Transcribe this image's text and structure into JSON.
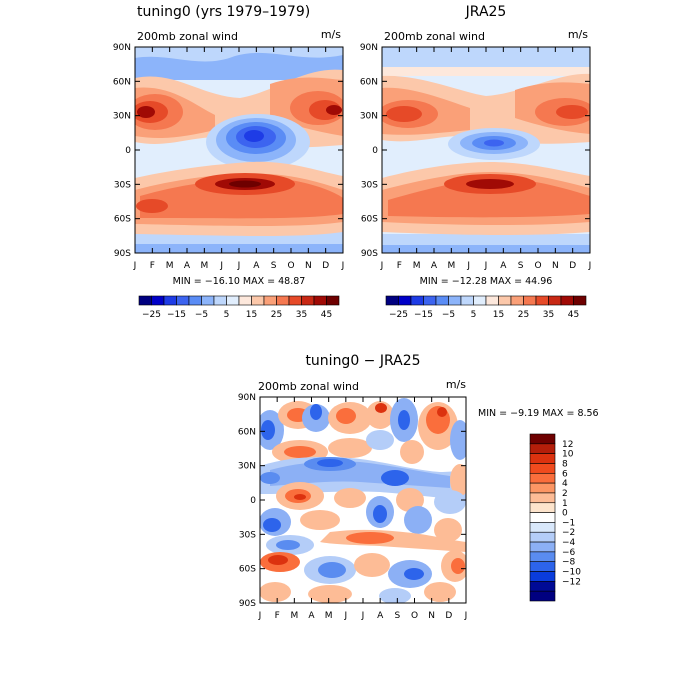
{
  "chart_data": [
    {
      "type": "heatmap",
      "title": "tuning0 (yrs 1979–1979)",
      "subtitle": "200mb zonal wind",
      "units": "m/s",
      "xlabels": [
        "J",
        "F",
        "M",
        "A",
        "M",
        "J",
        "J",
        "A",
        "S",
        "O",
        "N",
        "D",
        "J"
      ],
      "ylabels": [
        "90N",
        "60N",
        "30N",
        "0",
        "30S",
        "60S",
        "90S"
      ],
      "stats": "MIN = −16.10 MAX =   48.87",
      "colorbar": {
        "orientation": "horizontal",
        "levels": [
          -25,
          -20,
          -15,
          -10,
          -5,
          0,
          5,
          10,
          15,
          20,
          25,
          30,
          35,
          40,
          45
        ],
        "labels": [
          "−25",
          "−15",
          "−5",
          "5",
          "15",
          "25",
          "35",
          "45"
        ],
        "colors": [
          "#000080",
          "#0000c8",
          "#1e3ce6",
          "#3c64f0",
          "#5a8cf5",
          "#8cb4fa",
          "#bed7fc",
          "#e1eefd",
          "#fde8dc",
          "#fcc8aa",
          "#faa078",
          "#f57850",
          "#e64a28",
          "#c82814",
          "#a00a05",
          "#6e0000"
        ]
      },
      "zonal_profile": {
        "note": "",
        "values": []
      }
    },
    {
      "type": "heatmap",
      "title": "JRA25",
      "subtitle": "200mb zonal wind",
      "units": "m/s",
      "xlabels": [
        "J",
        "F",
        "M",
        "A",
        "M",
        "J",
        "J",
        "A",
        "S",
        "O",
        "N",
        "D",
        "J"
      ],
      "ylabels": [
        "90N",
        "60N",
        "30N",
        "0",
        "30S",
        "60S",
        "90S"
      ],
      "stats": "MIN = −12.28 MAX =   44.96",
      "colorbar": {
        "orientation": "horizontal",
        "levels": [
          -25,
          -20,
          -15,
          -10,
          -5,
          0,
          5,
          10,
          15,
          20,
          25,
          30,
          35,
          40,
          45
        ],
        "labels": [
          "−25",
          "−15",
          "−5",
          "5",
          "15",
          "25",
          "35",
          "45"
        ],
        "colors": [
          "#000080",
          "#0000c8",
          "#1e3ce6",
          "#3c64f0",
          "#5a8cf5",
          "#8cb4fa",
          "#bed7fc",
          "#e1eefd",
          "#fde8dc",
          "#fcc8aa",
          "#faa078",
          "#f57850",
          "#e64a28",
          "#c82814",
          "#a00a05",
          "#6e0000"
        ]
      }
    },
    {
      "type": "heatmap",
      "title": "tuning0 − JRA25",
      "subtitle": "200mb zonal wind",
      "units": "m/s",
      "xlabels": [
        "J",
        "F",
        "M",
        "A",
        "M",
        "J",
        "J",
        "A",
        "S",
        "O",
        "N",
        "D",
        "J"
      ],
      "ylabels": [
        "90N",
        "60N",
        "30N",
        "0",
        "30S",
        "60S",
        "90S"
      ],
      "stats": "MIN =   −9.19 MAX =    8.56",
      "colorbar": {
        "orientation": "vertical",
        "levels": [
          -12,
          -10,
          -8,
          -6,
          -4,
          -2,
          -1,
          0,
          1,
          2,
          4,
          6,
          8,
          10,
          12
        ],
        "labels": [
          "12",
          "10",
          "8",
          "6",
          "4",
          "2",
          "1",
          "0",
          "−1",
          "−2",
          "−4",
          "−6",
          "−8",
          "−10",
          "−12"
        ],
        "colors": [
          "#6e0000",
          "#b41e0a",
          "#dc320f",
          "#f04b1e",
          "#fa6e3c",
          "#fc9664",
          "#fdbc96",
          "#fde4cc",
          "#ffffff",
          "#d9e8fb",
          "#b4cdf8",
          "#8cb0f5",
          "#5a8cf0",
          "#2d64eb",
          "#0a3cdc",
          "#000a96",
          "#000080"
        ]
      }
    }
  ]
}
